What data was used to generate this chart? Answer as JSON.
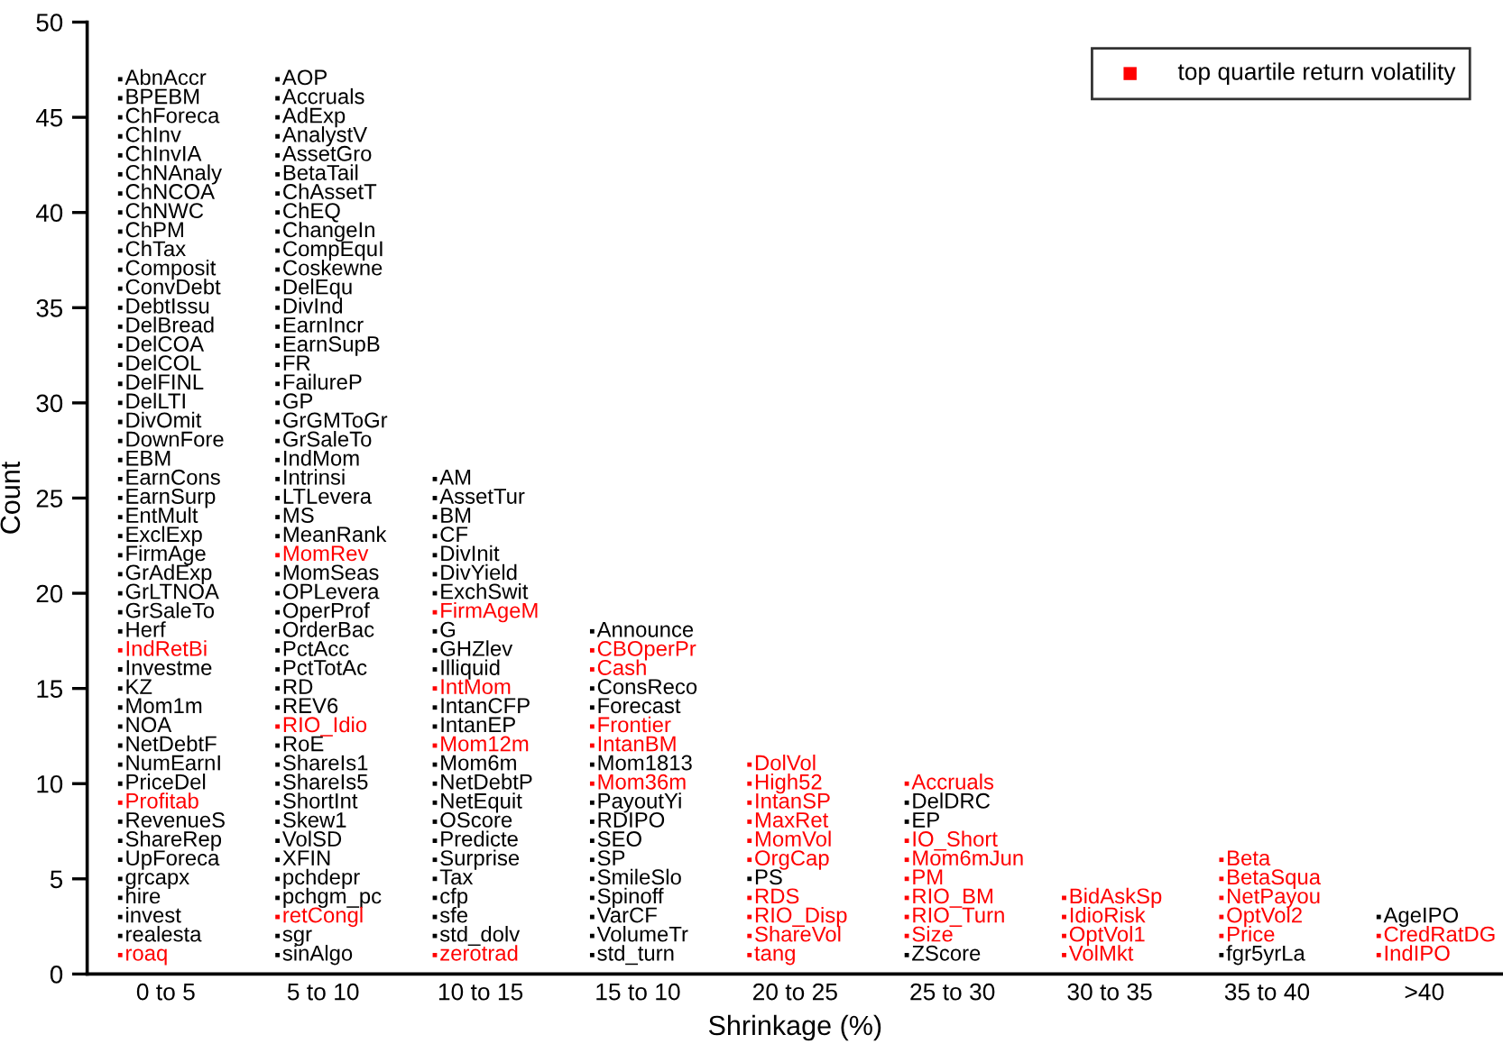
{
  "chart_data": {
    "type": "scatter",
    "xlabel": "Shrinkage (%)",
    "ylabel": "Count",
    "categories": [
      "0 to 5",
      "5 to 10",
      "10 to 15",
      "15 to 10",
      "20 to 25",
      "25 to 30",
      "30 to 35",
      "35 to 40",
      ">40"
    ],
    "ylim": [
      0,
      50
    ],
    "yticks": [
      0,
      5,
      10,
      15,
      20,
      25,
      30,
      35,
      40,
      45,
      50
    ],
    "grid": false,
    "legend": "top right",
    "marker": "square",
    "series": [
      {
        "color": "#000000",
        "x": [
          "0 to 5",
          "0 to 5",
          "0 to 5",
          "0 to 5",
          "0 to 5",
          "0 to 5",
          "0 to 5",
          "0 to 5",
          "0 to 5",
          "0 to 5",
          "0 to 5",
          "0 to 5",
          "0 to 5",
          "0 to 5",
          "0 to 5",
          "0 to 5",
          "0 to 5",
          "0 to 5",
          "0 to 5",
          "0 to 5",
          "0 to 5",
          "0 to 5",
          "0 to 5",
          "0 to 5",
          "0 to 5",
          "0 to 5",
          "0 to 5",
          "0 to 5",
          "0 to 5",
          "0 to 5",
          "0 to 5",
          "0 to 5",
          "0 to 5",
          "0 to 5",
          "0 to 5",
          "0 to 5",
          "0 to 5",
          "0 to 5",
          "0 to 5",
          "0 to 5",
          "0 to 5",
          "0 to 5",
          "0 to 5",
          "0 to 5",
          "5 to 10",
          "5 to 10",
          "5 to 10",
          "5 to 10",
          "5 to 10",
          "5 to 10",
          "5 to 10",
          "5 to 10",
          "5 to 10",
          "5 to 10",
          "5 to 10",
          "5 to 10",
          "5 to 10",
          "5 to 10",
          "5 to 10",
          "5 to 10",
          "5 to 10",
          "5 to 10",
          "5 to 10",
          "5 to 10",
          "5 to 10",
          "5 to 10",
          "5 to 10",
          "5 to 10",
          "5 to 10",
          "5 to 10",
          "5 to 10",
          "5 to 10",
          "5 to 10",
          "5 to 10",
          "5 to 10",
          "5 to 10",
          "5 to 10",
          "5 to 10",
          "5 to 10",
          "5 to 10",
          "5 to 10",
          "5 to 10",
          "5 to 10",
          "5 to 10",
          "5 to 10",
          "5 to 10",
          "5 to 10",
          "5 to 10",
          "10 to 15",
          "10 to 15",
          "10 to 15",
          "10 to 15",
          "10 to 15",
          "10 to 15",
          "10 to 15",
          "10 to 15",
          "10 to 15",
          "10 to 15",
          "10 to 15",
          "10 to 15",
          "10 to 15",
          "10 to 15",
          "10 to 15",
          "10 to 15",
          "10 to 15",
          "10 to 15",
          "10 to 15",
          "10 to 15",
          "10 to 15",
          "10 to 15",
          "15 to 10",
          "15 to 10",
          "15 to 10",
          "15 to 10",
          "15 to 10",
          "15 to 10",
          "15 to 10",
          "15 to 10",
          "15 to 10",
          "15 to 10",
          "15 to 10",
          "15 to 10",
          "15 to 10",
          "20 to 25",
          "25 to 30",
          "25 to 30",
          "25 to 30",
          "35 to 40",
          ">40"
        ],
        "values": [
          2,
          3,
          4,
          5,
          6,
          7,
          8,
          10,
          11,
          12,
          13,
          14,
          15,
          16,
          18,
          19,
          20,
          21,
          22,
          23,
          24,
          25,
          26,
          27,
          28,
          29,
          30,
          31,
          32,
          33,
          34,
          35,
          36,
          37,
          38,
          39,
          40,
          41,
          42,
          43,
          44,
          45,
          46,
          47,
          1,
          2,
          4,
          5,
          6,
          7,
          8,
          9,
          10,
          11,
          12,
          14,
          15,
          16,
          17,
          18,
          19,
          20,
          21,
          23,
          24,
          25,
          26,
          27,
          28,
          29,
          30,
          31,
          32,
          33,
          34,
          35,
          36,
          37,
          38,
          39,
          40,
          41,
          42,
          43,
          44,
          45,
          46,
          47,
          2,
          3,
          4,
          5,
          6,
          7,
          8,
          9,
          10,
          11,
          13,
          14,
          16,
          17,
          18,
          20,
          21,
          22,
          23,
          24,
          25,
          26,
          1,
          2,
          3,
          4,
          5,
          6,
          7,
          8,
          9,
          11,
          14,
          15,
          18,
          5,
          1,
          8,
          9,
          1,
          3
        ],
        "value_labels": [
          "realesta",
          "invest",
          "hire",
          "grcapx",
          "UpForeca",
          "ShareRep",
          "RevenueS",
          "PriceDel",
          "NumEarnI",
          "NetDebtF",
          "NOA",
          "Mom1m",
          "KZ",
          "Investme",
          "Herf",
          "GrSaleTo",
          "GrLTNOA",
          "GrAdExp",
          "FirmAge",
          "ExclExp",
          "EntMult",
          "EarnSurp",
          "EarnCons",
          "EBM",
          "DownFore",
          "DivOmit",
          "DelLTI",
          "DelFINL",
          "DelCOL",
          "DelCOA",
          "DelBread",
          "DebtIssu",
          "ConvDebt",
          "Composit",
          "ChTax",
          "ChPM",
          "ChNWC",
          "ChNCOA",
          "ChNAnaly",
          "ChInvIA",
          "ChInv",
          "ChForeca",
          "BPEBM",
          "AbnAccr",
          "sinAlgo",
          "sgr",
          "pchgm_pc",
          "pchdepr",
          "XFIN",
          "VolSD",
          "Skew1",
          "ShortInt",
          "ShareIs5",
          "ShareIs1",
          "RoE",
          "REV6",
          "RD",
          "PctTotAc",
          "PctAcc",
          "OrderBac",
          "OperProf",
          "OPLevera",
          "MomSeas",
          "MeanRank",
          "MS",
          "LTLevera",
          "Intrinsi",
          "IndMom",
          "GrSaleTo",
          "GrGMToGr",
          "GP",
          "FailureP",
          "FR",
          "EarnSupB",
          "EarnIncr",
          "DivInd",
          "DelEqu",
          "Coskewne",
          "CompEquI",
          "ChangeIn",
          "ChEQ",
          "ChAssetT",
          "BetaTail",
          "AssetGro",
          "AnalystV",
          "AdExp",
          "Accruals",
          "AOP",
          "std_dolv",
          "sfe",
          "cfp",
          "Tax",
          "Surprise",
          "Predicte",
          "OScore",
          "NetEquit",
          "NetDebtP",
          "Mom6m",
          "IntanEP",
          "IntanCFP",
          "Illiquid",
          "GHZlev",
          "G",
          "ExchSwit",
          "DivYield",
          "DivInit",
          "CF",
          "BM",
          "AssetTur",
          "AM",
          "std_turn",
          "VolumeTr",
          "VarCF",
          "Spinoff",
          "SmileSlo",
          "SP",
          "SEO",
          "RDIPO",
          "PayoutYi",
          "Mom1813",
          "Forecast",
          "ConsReco",
          "Announce",
          "PS",
          "ZScore",
          "EP",
          "DelDRC",
          "fgr5yrLa",
          "AgeIPO"
        ]
      },
      {
        "name": "top quartile return volatility",
        "color": "#ff0000",
        "x": [
          "0 to 5",
          "0 to 5",
          "0 to 5",
          "5 to 10",
          "5 to 10",
          "5 to 10",
          "10 to 15",
          "10 to 15",
          "10 to 15",
          "10 to 15",
          "15 to 10",
          "15 to 10",
          "15 to 10",
          "15 to 10",
          "15 to 10",
          "20 to 25",
          "20 to 25",
          "20 to 25",
          "20 to 25",
          "20 to 25",
          "20 to 25",
          "20 to 25",
          "20 to 25",
          "20 to 25",
          "20 to 25",
          "25 to 30",
          "25 to 30",
          "25 to 30",
          "25 to 30",
          "25 to 30",
          "25 to 30",
          "25 to 30",
          "30 to 35",
          "30 to 35",
          "30 to 35",
          "30 to 35",
          "35 to 40",
          "35 to 40",
          "35 to 40",
          "35 to 40",
          "35 to 40",
          ">40",
          ">40"
        ],
        "values": [
          1,
          9,
          17,
          3,
          13,
          22,
          1,
          12,
          15,
          19,
          10,
          12,
          13,
          16,
          17,
          1,
          2,
          3,
          4,
          6,
          7,
          8,
          9,
          10,
          11,
          2,
          3,
          4,
          5,
          6,
          7,
          10,
          1,
          2,
          3,
          4,
          2,
          3,
          4,
          5,
          6,
          1,
          2
        ],
        "value_labels": [
          "roaq",
          "Profitab",
          "IndRetBi",
          "retCongl",
          "RIO_Idio",
          "MomRev",
          "zerotrad",
          "Mom12m",
          "IntMom",
          "FirmAgeM",
          "Mom36m",
          "IntanBM",
          "Frontier",
          "Cash",
          "CBOperPr",
          "tang",
          "ShareVol",
          "RIO_Disp",
          "RDS",
          "OrgCap",
          "MomVol",
          "MaxRet",
          "IntanSP",
          "High52",
          "DolVol",
          "Size",
          "RIO_Turn",
          "RIO_BM",
          "PM",
          "Mom6mJun",
          "IO_Short",
          "Accruals",
          "VolMkt",
          "OptVol1",
          "IdioRisk",
          "BidAskSp",
          "Price",
          "OptVol2",
          "NetPayou",
          "BetaSqua",
          "Beta",
          "IndIPO",
          "CredRatDG"
        ]
      }
    ]
  }
}
